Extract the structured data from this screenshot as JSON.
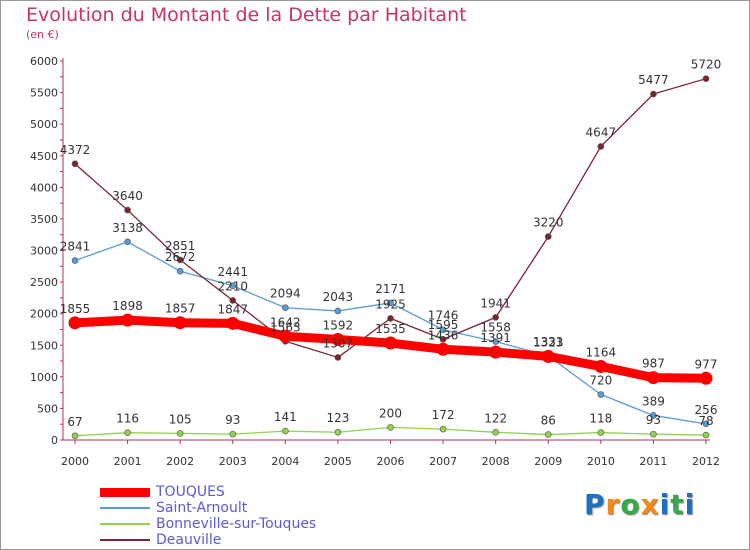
{
  "title": "Evolution du Montant de la Dette par Habitant",
  "unit": "(en €)",
  "logo": {
    "text": "Proxiti",
    "letters": [
      "P",
      "r",
      "o",
      "x",
      "i",
      "t",
      "i"
    ],
    "colors": [
      "#1f6fbf",
      "#f08a1a",
      "#3aa84a",
      "#f08a1a",
      "#1f6fbf",
      "#3aa84a",
      "#1f6fbf"
    ]
  },
  "chart_data": {
    "type": "line",
    "title": "Evolution du Montant de la Dette par Habitant",
    "ylabel": "(en €)",
    "xlabel": "",
    "ylim": [
      0,
      6000
    ],
    "yticks": [
      0,
      500,
      1000,
      1500,
      2000,
      2500,
      3000,
      3500,
      4000,
      4500,
      5000,
      5500,
      6000
    ],
    "categories": [
      "2000",
      "2001",
      "2002",
      "2003",
      "2004",
      "2005",
      "2006",
      "2007",
      "2008",
      "2009",
      "2010",
      "2011",
      "2012"
    ],
    "grid": false,
    "legend": "bottom-left",
    "series": [
      {
        "name": "TOUQUES",
        "color": "#ff0000",
        "values": [
          1855,
          1898,
          1857,
          1847,
          1642,
          1592,
          1535,
          1436,
          1391,
          1323,
          1164,
          987,
          977
        ]
      },
      {
        "name": "Saint-Arnoult",
        "color": "#5b9bd5",
        "values": [
          2841,
          3138,
          2672,
          2441,
          2094,
          2043,
          2171,
          1746,
          1558,
          1331,
          720,
          389,
          256
        ]
      },
      {
        "name": "Bonneville-sur-Touques",
        "color": "#92d050",
        "values": [
          67,
          116,
          105,
          93,
          141,
          123,
          200,
          172,
          122,
          86,
          118,
          93,
          78
        ]
      },
      {
        "name": "Deauville",
        "color": "#7b2430",
        "values": [
          4372,
          3640,
          2851,
          2210,
          1563,
          1307,
          1925,
          1595,
          1941,
          3220,
          4647,
          5477,
          5720
        ]
      }
    ]
  }
}
